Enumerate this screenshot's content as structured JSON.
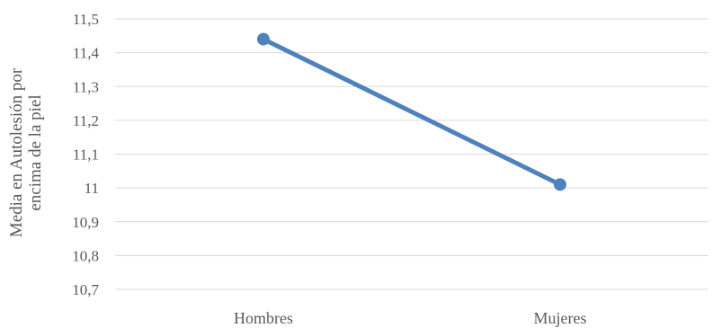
{
  "chart_data": {
    "type": "line",
    "categories": [
      "Hombres",
      "Mujeres"
    ],
    "series": [
      {
        "values": [
          11.44,
          11.01
        ],
        "color": "#4f81bd"
      }
    ],
    "title": "",
    "xlabel": "",
    "ylabel_lines": [
      "Media en Autolesión por",
      "encima de la piel"
    ],
    "ylim": [
      10.7,
      11.5
    ],
    "yticks": [
      "10,7",
      "10,8",
      "10,9",
      "11",
      "11,1",
      "11,2",
      "11,3",
      "11,4",
      "11,5"
    ],
    "grid": true,
    "legend": "none"
  }
}
